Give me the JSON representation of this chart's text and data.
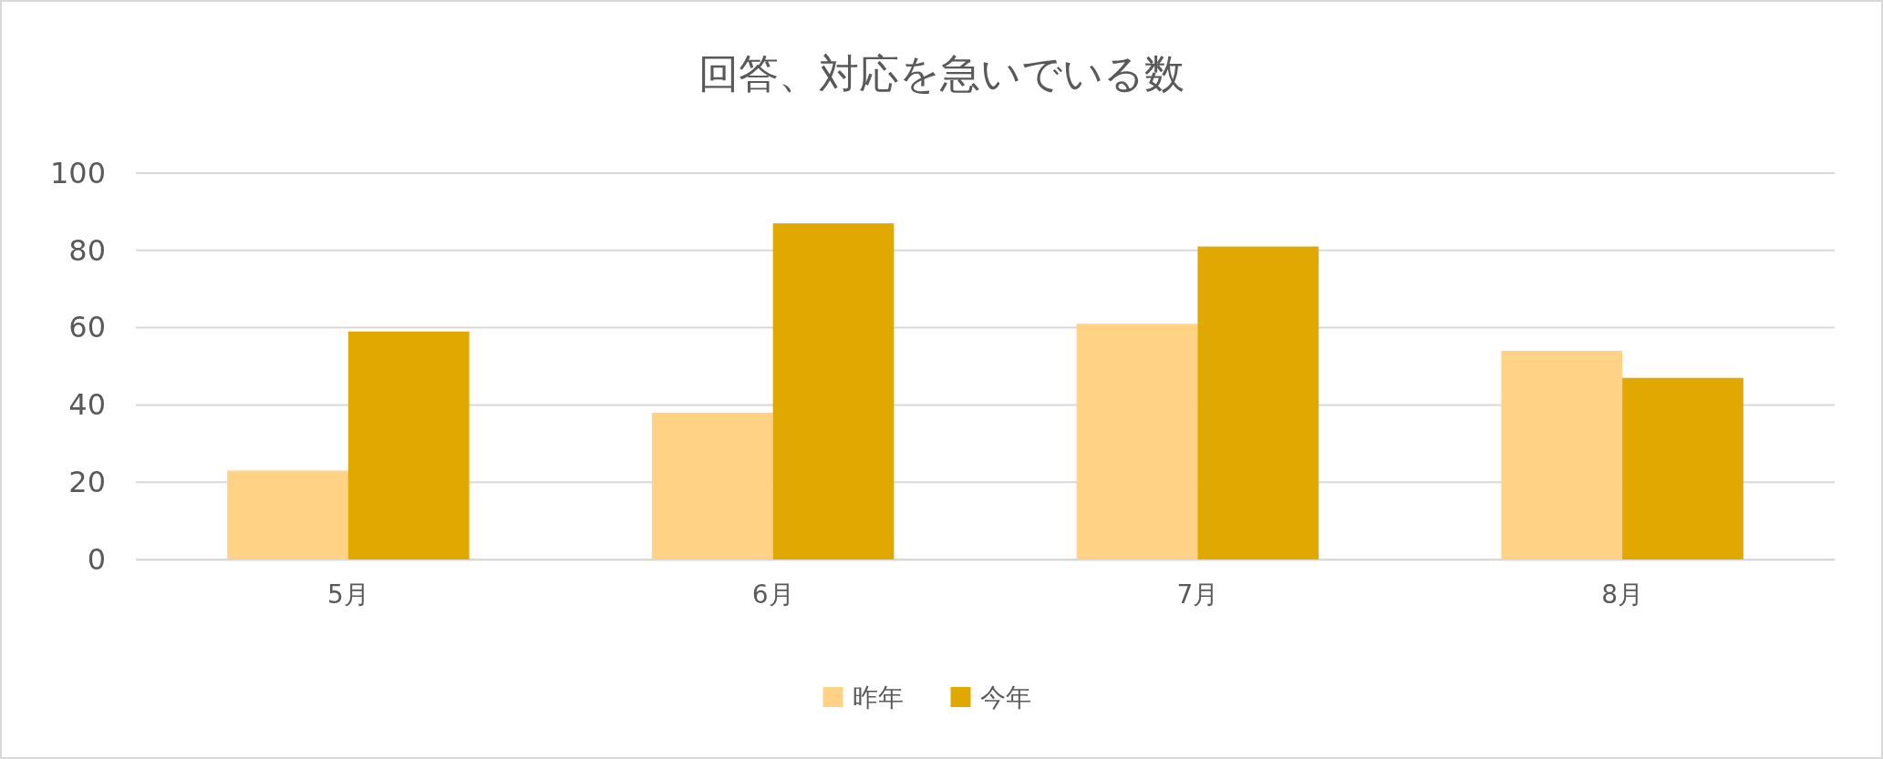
{
  "chart_data": {
    "type": "bar",
    "title": "回答、対応を急いでいる数",
    "categories": [
      "5月",
      "6月",
      "7月",
      "8月"
    ],
    "series": [
      {
        "name": "昨年",
        "color": "#ffd285",
        "values": [
          23,
          38,
          61,
          54
        ]
      },
      {
        "name": "今年",
        "color": "#e0a800",
        "values": [
          59,
          87,
          81,
          47
        ]
      }
    ],
    "ylim": [
      0,
      100
    ],
    "yticks": [
      0,
      20,
      40,
      60,
      80,
      100
    ],
    "grid": "y",
    "legend": "bottom"
  }
}
